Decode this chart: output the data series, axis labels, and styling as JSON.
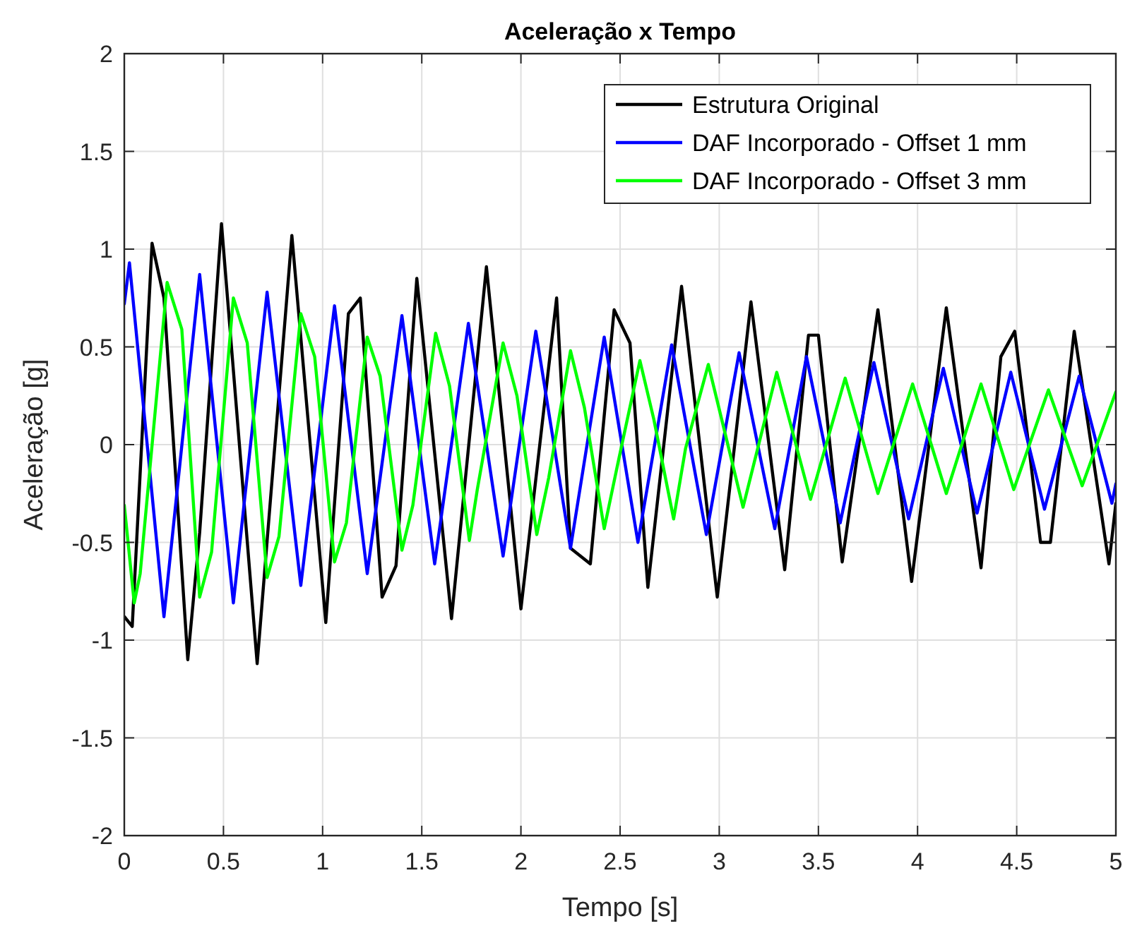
{
  "chart_data": {
    "type": "line",
    "title": "Aceleração x Tempo",
    "xlabel": "Tempo [s]",
    "ylabel": "Aceleração [g]",
    "xlim": [
      0,
      5
    ],
    "xticks": [
      0,
      0.5,
      1,
      1.5,
      2,
      2.5,
      3,
      3.5,
      4,
      4.5,
      5
    ],
    "ylim": [
      -2,
      2
    ],
    "yticks": [
      -2,
      -1.5,
      -1,
      -0.5,
      0,
      0.5,
      1,
      1.5,
      2
    ],
    "grid": true,
    "legend": "top right",
    "line_style": "solid",
    "marker": "none",
    "series": [
      {
        "name": "Estrutura Original",
        "color": "#000000",
        "x": [
          0,
          0.04,
          0.14,
          0.2,
          0.32,
          0.38,
          0.49,
          0.67,
          0.845,
          1.016,
          1.13,
          1.19,
          1.3,
          1.37,
          1.475,
          1.65,
          1.826,
          2.0,
          2.18,
          2.25,
          2.35,
          2.47,
          2.55,
          2.64,
          2.81,
          2.99,
          3.16,
          3.33,
          3.45,
          3.5,
          3.62,
          3.8,
          3.97,
          4.145,
          4.32,
          4.42,
          4.49,
          4.62,
          4.67,
          4.79,
          4.965,
          5
        ],
        "values": [
          -0.88,
          -0.93,
          1.03,
          0.75,
          -1.1,
          -0.45,
          1.13,
          -1.12,
          1.07,
          -0.91,
          0.67,
          0.75,
          -0.78,
          -0.62,
          0.85,
          -0.89,
          0.91,
          -0.84,
          0.75,
          -0.53,
          -0.61,
          0.69,
          0.52,
          -0.73,
          0.81,
          -0.78,
          0.73,
          -0.64,
          0.56,
          0.56,
          -0.6,
          0.69,
          -0.7,
          0.7,
          -0.63,
          0.45,
          0.58,
          -0.5,
          -0.5,
          0.58,
          -0.61,
          -0.3
        ]
      },
      {
        "name": "DAF Incorporado - Offset 1 mm",
        "color": "#0000ff",
        "x": [
          0,
          0.026,
          0.2,
          0.38,
          0.55,
          0.72,
          0.89,
          1.06,
          1.225,
          1.4,
          1.565,
          1.735,
          1.91,
          2.075,
          2.25,
          2.42,
          2.59,
          2.76,
          2.935,
          3.1,
          3.28,
          3.44,
          3.61,
          3.78,
          3.955,
          4.13,
          4.3,
          4.47,
          4.64,
          4.815,
          4.98,
          5
        ],
        "values": [
          0.72,
          0.93,
          -0.88,
          0.87,
          -0.81,
          0.78,
          -0.72,
          0.71,
          -0.66,
          0.66,
          -0.61,
          0.62,
          -0.57,
          0.58,
          -0.53,
          0.55,
          -0.5,
          0.51,
          -0.46,
          0.47,
          -0.43,
          0.45,
          -0.4,
          0.42,
          -0.38,
          0.39,
          -0.35,
          0.37,
          -0.33,
          0.35,
          -0.3,
          -0.2
        ]
      },
      {
        "name": "DAF Incorporado - Offset 3 mm",
        "color": "#00ff00",
        "x": [
          0,
          0.05,
          0.08,
          0.216,
          0.29,
          0.38,
          0.44,
          0.55,
          0.62,
          0.72,
          0.78,
          0.89,
          0.96,
          1.06,
          1.12,
          1.225,
          1.29,
          1.4,
          1.455,
          1.57,
          1.64,
          1.74,
          1.78,
          1.91,
          1.98,
          2.08,
          2.14,
          2.25,
          2.32,
          2.42,
          2.49,
          2.6,
          2.67,
          2.77,
          2.83,
          2.945,
          3.12,
          3.29,
          3.46,
          3.635,
          3.8,
          3.975,
          4.145,
          4.32,
          4.485,
          4.66,
          4.83,
          5
        ],
        "values": [
          -0.31,
          -0.81,
          -0.66,
          0.83,
          0.59,
          -0.78,
          -0.55,
          0.75,
          0.52,
          -0.68,
          -0.47,
          0.67,
          0.45,
          -0.6,
          -0.4,
          0.55,
          0.35,
          -0.54,
          -0.31,
          0.57,
          0.3,
          -0.49,
          -0.23,
          0.52,
          0.25,
          -0.46,
          -0.17,
          0.48,
          0.19,
          -0.43,
          -0.09,
          0.43,
          0.13,
          -0.38,
          -0.02,
          0.41,
          -0.32,
          0.37,
          -0.28,
          0.34,
          -0.25,
          0.31,
          -0.25,
          0.31,
          -0.23,
          0.28,
          -0.21,
          0.27
        ]
      }
    ]
  }
}
